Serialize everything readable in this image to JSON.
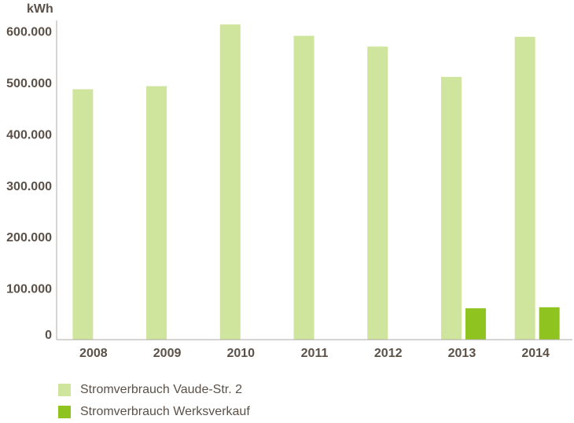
{
  "chart_data": {
    "type": "bar",
    "ylabel": "kWh",
    "categories": [
      "2008",
      "2009",
      "2010",
      "2011",
      "2012",
      "2013",
      "2014"
    ],
    "series": [
      {
        "name": "Stromverbrauch Vaude-Str. 2",
        "color": "#cfe49c",
        "values": [
          487000,
          493000,
          613000,
          591000,
          570000,
          511000,
          589000
        ]
      },
      {
        "name": "Stromverbrauch Werksverkauf",
        "color": "#8fc31f",
        "values": [
          null,
          null,
          null,
          null,
          null,
          61000,
          63000
        ]
      }
    ],
    "ylim": [
      0,
      630000
    ],
    "yticks": [
      0,
      100000,
      200000,
      300000,
      400000,
      500000,
      600000
    ],
    "ytick_labels": [
      "0",
      "100.000",
      "200.000",
      "300.000",
      "400.000",
      "500.000",
      "600.000"
    ],
    "grid": false,
    "legend_position": "bottom-left",
    "axis_color": "#b0aaa3"
  }
}
